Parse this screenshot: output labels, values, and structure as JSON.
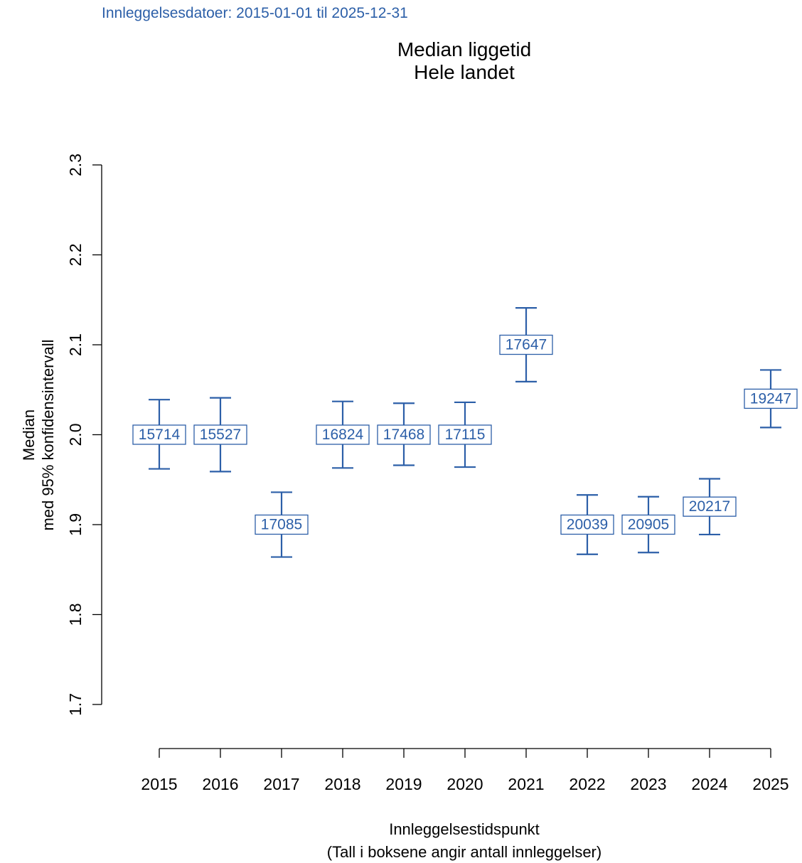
{
  "subtitle": "Innleggelsesdatoer: 2015-01-01 til 2025-12-31",
  "title_lines": [
    "Median liggetid",
    "Hele landet"
  ],
  "accent_color": "#2c5fa8",
  "chart_data": {
    "type": "scatter",
    "title": "Median liggetid\nHele landet",
    "ylabel_lines": [
      "Median",
      "med 95% konfidensintervall"
    ],
    "xlabel": "Innleggelsestidspunkt",
    "xlabel_note": "(Tall i boksene angir antall innleggelser)",
    "ylim": [
      1.7,
      2.3
    ],
    "yticks": [
      "1.7",
      "1.8",
      "1.9",
      "2.0",
      "2.1",
      "2.2",
      "2.3"
    ],
    "categories": [
      "2015",
      "2016",
      "2017",
      "2018",
      "2019",
      "2020",
      "2021",
      "2022",
      "2023",
      "2024",
      "2025"
    ],
    "series": [
      {
        "median": [
          2.0,
          2.0,
          1.9,
          2.0,
          2.0,
          2.0,
          2.1,
          1.9,
          1.9,
          1.92,
          2.04
        ],
        "ci_lower": [
          1.962,
          1.959,
          1.864,
          1.963,
          1.966,
          1.964,
          2.059,
          1.867,
          1.869,
          1.889,
          2.008
        ],
        "ci_upper": [
          2.039,
          2.041,
          1.936,
          2.037,
          2.035,
          2.036,
          2.141,
          1.933,
          1.931,
          1.951,
          2.072
        ],
        "counts": [
          "15714",
          "15527",
          "17085",
          "16824",
          "17468",
          "17115",
          "17647",
          "20039",
          "20905",
          "20217",
          "19247"
        ]
      }
    ],
    "grid": false,
    "legend": "none"
  }
}
